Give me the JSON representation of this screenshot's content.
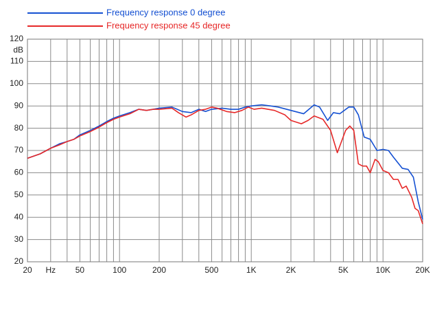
{
  "chart_data": {
    "type": "line",
    "x_scale": "log",
    "grid": true,
    "y_label": "dB",
    "xlim": [
      20,
      20000
    ],
    "ylim": [
      20,
      120
    ],
    "yticks": [
      20,
      30,
      40,
      50,
      60,
      70,
      80,
      90,
      100,
      110,
      120
    ],
    "xticks": [
      20,
      {
        "value": 30,
        "label": "Hz"
      },
      50,
      100,
      200,
      500,
      {
        "value": 1000,
        "label": "1K"
      },
      {
        "value": 2000,
        "label": "2K"
      },
      {
        "value": 5000,
        "label": "5K"
      },
      {
        "value": 10000,
        "label": "10K"
      },
      {
        "value": 20000,
        "label": "20K"
      }
    ],
    "xgrid": [
      20,
      30,
      40,
      50,
      60,
      70,
      80,
      90,
      100,
      200,
      300,
      400,
      500,
      600,
      700,
      800,
      900,
      1000,
      2000,
      3000,
      4000,
      5000,
      6000,
      7000,
      8000,
      9000,
      10000,
      20000
    ],
    "series": [
      {
        "name": "Frequency response 0 degree",
        "color": "#1450d2",
        "x": [
          20,
          25,
          30,
          35,
          40,
          45,
          50,
          60,
          70,
          80,
          90,
          100,
          120,
          140,
          160,
          180,
          200,
          250,
          300,
          350,
          400,
          450,
          500,
          600,
          700,
          800,
          900,
          1000,
          1200,
          1400,
          1600,
          2000,
          2500,
          3000,
          3300,
          3800,
          4200,
          4700,
          5500,
          6000,
          6500,
          7200,
          8000,
          9000,
          10000,
          11000,
          12000,
          14000,
          15500,
          17000,
          18500,
          20000
        ],
        "values": [
          66.5,
          68.5,
          71,
          73,
          74,
          75,
          77,
          79,
          81,
          83,
          84.5,
          85.5,
          87,
          88.5,
          88,
          88.5,
          89,
          89.5,
          87.5,
          87,
          88.5,
          87.5,
          88.5,
          89,
          88.5,
          88.5,
          89.5,
          90,
          90.5,
          90,
          89.5,
          88,
          86.5,
          90.5,
          89.5,
          83.5,
          87,
          86.5,
          89.5,
          89.5,
          86,
          76,
          75,
          70,
          70.5,
          70,
          67,
          62,
          61.5,
          58,
          47,
          39
        ]
      },
      {
        "name": "Frequency response 45 degree",
        "color": "#e62828",
        "x": [
          20,
          25,
          30,
          35,
          40,
          45,
          50,
          60,
          70,
          80,
          90,
          100,
          120,
          140,
          160,
          180,
          200,
          250,
          280,
          320,
          350,
          400,
          450,
          500,
          550,
          650,
          750,
          850,
          950,
          1050,
          1200,
          1500,
          1800,
          2000,
          2400,
          2700,
          3000,
          3500,
          4000,
          4500,
          4700,
          5200,
          5600,
          6000,
          6500,
          7000,
          7500,
          8000,
          8700,
          9200,
          10000,
          11000,
          12000,
          13000,
          14000,
          15000,
          16500,
          17500,
          18500,
          19500,
          20000
        ],
        "values": [
          66.5,
          68.5,
          71,
          72.5,
          74,
          75,
          76.5,
          78.5,
          80.5,
          82.5,
          84,
          85,
          86.5,
          88.5,
          88,
          88.5,
          88.5,
          89,
          87,
          85,
          86,
          88,
          88.5,
          89.5,
          89,
          87.5,
          87,
          88,
          89.5,
          88.5,
          89,
          88,
          86,
          83.5,
          82,
          83.5,
          85.5,
          84,
          79,
          69,
          72,
          79,
          81,
          79,
          64,
          63,
          63,
          60,
          66,
          65,
          61,
          60,
          57,
          57,
          53,
          54,
          49,
          44,
          43,
          39,
          37
        ]
      }
    ]
  }
}
